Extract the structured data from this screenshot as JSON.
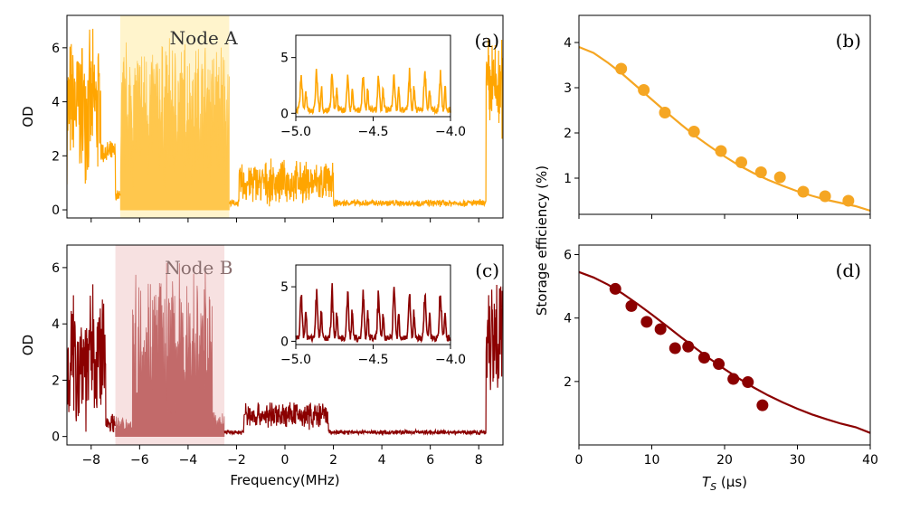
{
  "chart_data": [
    {
      "id": "a",
      "type": "line",
      "panel_label": "(a)",
      "node_label": "Node A",
      "ylabel": "OD",
      "xlabel": "",
      "xlim": [
        -9,
        9
      ],
      "ylim": [
        -0.3,
        7.2
      ],
      "xticks": [
        -8,
        -6,
        -4,
        -2,
        0,
        2,
        4,
        6,
        8
      ],
      "yticks": [
        0,
        2,
        4,
        6
      ],
      "show_xtick_labels": false,
      "color": "#FFA500",
      "highlight": {
        "x": [
          -6.8,
          -2.3
        ],
        "color": "#FFF4CC",
        "fill_color": "#FFC74D"
      },
      "segments": [
        {
          "x": [
            -9,
            -7.6
          ],
          "base": 3.8,
          "amp": 3.0
        },
        {
          "x": [
            -7.6,
            -7.0
          ],
          "base": 2.1,
          "amp": 0.5
        },
        {
          "x": [
            -7.0,
            -6.8
          ],
          "base": 0.5,
          "amp": 0.3
        },
        {
          "x": [
            -6.8,
            -2.3
          ],
          "base": 3.6,
          "amp": 3.2
        },
        {
          "x": [
            -2.3,
            -1.9
          ],
          "base": 0.25,
          "amp": 0.15
        },
        {
          "x": [
            -1.9,
            2.0
          ],
          "base": 1.0,
          "amp": 0.9
        },
        {
          "x": [
            2.0,
            8.3
          ],
          "base": 0.25,
          "amp": 0.15
        },
        {
          "x": [
            8.3,
            9.0
          ],
          "base": 4.5,
          "amp": 2.2
        }
      ],
      "inset": {
        "xlim": [
          -5.0,
          -4.0
        ],
        "ylim": [
          -0.3,
          7.0
        ],
        "xticks": [
          -5.0,
          -4.5,
          -4.0
        ],
        "yticks": [
          0,
          5
        ],
        "base": 2.2,
        "amp": 3.4,
        "period": 0.1
      }
    },
    {
      "id": "c",
      "type": "line",
      "panel_label": "(c)",
      "node_label": "Node B",
      "ylabel": "OD",
      "xlabel": "Frequency(MHz)",
      "xlim": [
        -9,
        9
      ],
      "ylim": [
        -0.3,
        6.8
      ],
      "xticks": [
        -8,
        -6,
        -4,
        -2,
        0,
        2,
        4,
        6,
        8
      ],
      "yticks": [
        0,
        2,
        4,
        6
      ],
      "show_xtick_labels": true,
      "color": "#8B0000",
      "highlight": {
        "x": [
          -7.0,
          -2.5
        ],
        "color": "#F7E1E1",
        "fill_color": "#C26A6A"
      },
      "segments": [
        {
          "x": [
            -9,
            -7.4
          ],
          "base": 2.8,
          "amp": 2.8
        },
        {
          "x": [
            -7.4,
            -7.0
          ],
          "base": 0.5,
          "amp": 0.4
        },
        {
          "x": [
            -7.0,
            -6.3
          ],
          "base": 0.4,
          "amp": 0.4
        },
        {
          "x": [
            -6.3,
            -3.0
          ],
          "base": 3.0,
          "amp": 3.4
        },
        {
          "x": [
            -3.0,
            -2.5
          ],
          "base": 0.5,
          "amp": 0.4
        },
        {
          "x": [
            -2.5,
            -1.7
          ],
          "base": 0.15,
          "amp": 0.1
        },
        {
          "x": [
            -1.7,
            1.8
          ],
          "base": 0.75,
          "amp": 0.55
        },
        {
          "x": [
            1.8,
            8.3
          ],
          "base": 0.15,
          "amp": 0.1
        },
        {
          "x": [
            8.3,
            9.0
          ],
          "base": 3.8,
          "amp": 2.8
        }
      ],
      "inset": {
        "xlim": [
          -5.0,
          -4.0
        ],
        "ylim": [
          -0.3,
          7.0
        ],
        "xticks": [
          -5.0,
          -4.5,
          -4.0
        ],
        "yticks": [
          0,
          5
        ],
        "base": 1.8,
        "amp": 4.4,
        "period": 0.1
      }
    },
    {
      "id": "b",
      "type": "scatter",
      "panel_label": "(b)",
      "ylabel": "",
      "xlabel": "",
      "xlim": [
        0,
        40
      ],
      "ylim": [
        0.2,
        4.6
      ],
      "xticks": [
        0,
        10,
        20,
        30,
        40
      ],
      "yticks": [
        1,
        2,
        3,
        4
      ],
      "show_xtick_labels": false,
      "color": "#F5A623",
      "points": {
        "x": [
          5.8,
          8.9,
          11.8,
          15.8,
          19.5,
          22.3,
          25.0,
          27.6,
          30.8,
          33.8,
          37.0
        ],
        "y": [
          3.42,
          2.95,
          2.45,
          2.03,
          1.6,
          1.35,
          1.13,
          1.02,
          0.7,
          0.6,
          0.5
        ]
      },
      "fit": {
        "x": [
          0,
          2,
          4,
          6,
          8,
          10,
          12,
          14,
          16,
          18,
          20,
          22,
          24,
          26,
          28,
          30,
          32,
          34,
          36,
          38,
          40
        ],
        "y": [
          3.9,
          3.77,
          3.55,
          3.3,
          3.02,
          2.74,
          2.46,
          2.19,
          1.93,
          1.7,
          1.48,
          1.28,
          1.11,
          0.96,
          0.83,
          0.71,
          0.61,
          0.52,
          0.45,
          0.38,
          0.28
        ]
      }
    },
    {
      "id": "d",
      "type": "scatter",
      "panel_label": "(d)",
      "ylabel": "",
      "xlabel": "T_S (μs)",
      "xlim": [
        0,
        40
      ],
      "ylim": [
        0,
        6.3
      ],
      "xticks": [
        0,
        10,
        20,
        30,
        40
      ],
      "yticks": [
        2,
        4,
        6
      ],
      "show_xtick_labels": true,
      "color": "#8B0000",
      "points": {
        "x": [
          5.0,
          7.2,
          9.3,
          11.2,
          13.2,
          15.0,
          17.2,
          19.2,
          21.2,
          23.2,
          25.2
        ],
        "y": [
          4.92,
          4.38,
          3.88,
          3.65,
          3.05,
          3.1,
          2.75,
          2.55,
          2.08,
          1.98,
          1.25
        ]
      },
      "fit": {
        "x": [
          0,
          2,
          4,
          6,
          8,
          10,
          12,
          14,
          16,
          18,
          20,
          22,
          24,
          26,
          28,
          30,
          32,
          34,
          36,
          38,
          40
        ],
        "y": [
          5.45,
          5.28,
          5.05,
          4.77,
          4.45,
          4.11,
          3.76,
          3.4,
          3.05,
          2.71,
          2.39,
          2.09,
          1.81,
          1.56,
          1.34,
          1.14,
          0.96,
          0.81,
          0.67,
          0.56,
          0.38
        ]
      }
    }
  ],
  "shared_ylabel": "Storage efficiency (%)"
}
